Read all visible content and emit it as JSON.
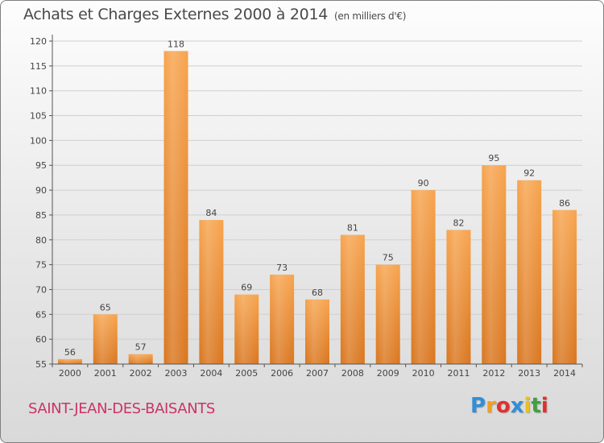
{
  "header": {
    "title": "Achats et Charges Externes 2000 à 2014",
    "subtitle": "(en milliers d'€)"
  },
  "footer": {
    "commune": "SAINT-JEAN-DES-BAISANTS",
    "logo_letters": [
      "P",
      "r",
      "o",
      "x",
      "i",
      "t",
      "i"
    ],
    "logo_colors": [
      "#2f8fd8",
      "#f0a020",
      "#e03030",
      "#2f8fd8",
      "#e8c020",
      "#40a040",
      "#e03030"
    ]
  },
  "colors": {
    "bar_light": "#f7a44e",
    "bar_dark": "#d9761f",
    "axis": "#555555",
    "grid": "#cfcfcf",
    "text": "#444444"
  },
  "chart_data": {
    "type": "bar",
    "title": "Achats et Charges Externes 2000 à 2014",
    "subtitle": "(en milliers d'€)",
    "categories": [
      "2000",
      "2001",
      "2002",
      "2003",
      "2004",
      "2005",
      "2006",
      "2007",
      "2008",
      "2009",
      "2010",
      "2011",
      "2012",
      "2013",
      "2014"
    ],
    "values": [
      56,
      65,
      57,
      118,
      84,
      69,
      73,
      68,
      81,
      75,
      90,
      82,
      95,
      92,
      86
    ],
    "ylim": [
      55,
      120
    ],
    "yticks": [
      55,
      60,
      65,
      70,
      75,
      80,
      85,
      90,
      95,
      100,
      105,
      110,
      115,
      120
    ],
    "xlabel": "",
    "ylabel": "",
    "grid": true
  }
}
